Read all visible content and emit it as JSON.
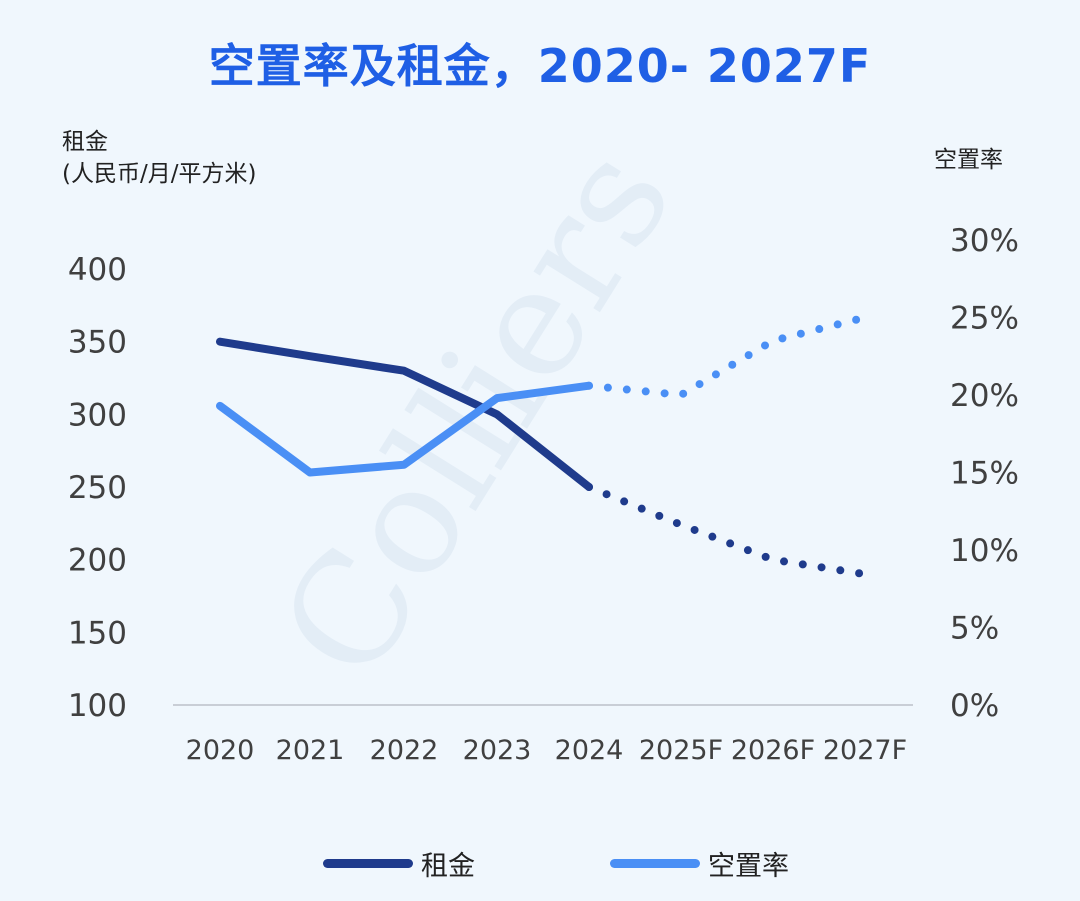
{
  "title": "空置率及租金，2020- 2027F",
  "watermark": "Colliers",
  "chart_data": {
    "type": "line",
    "title": "空置率及租金，2020- 2027F",
    "categories": [
      "2020",
      "2021",
      "2022",
      "2023",
      "2024",
      "2025F",
      "2026F",
      "2027F"
    ],
    "ylabel_left": [
      "租金",
      "(人民币/月/平方米)"
    ],
    "ylabel_right": "空置率",
    "ylim_left": [
      100,
      400
    ],
    "ylim_right": [
      0,
      30
    ],
    "yticks_left": [
      "400",
      "350",
      "300",
      "250",
      "200",
      "150",
      "100"
    ],
    "yticks_right": [
      "30%",
      "25%",
      "20%",
      "15%",
      "10%",
      "5%",
      "0%"
    ],
    "series": [
      {
        "name": "租金",
        "axis": "left",
        "color": "#1f3b8c",
        "values": [
          350,
          340,
          330,
          300,
          250,
          224,
          200,
          190
        ],
        "forecast_from_index": 4
      },
      {
        "name": "空置率",
        "axis": "right",
        "color": "#4a8ff5",
        "values": [
          19.3,
          15.0,
          15.5,
          19.8,
          20.6,
          20.0,
          23.5,
          25.0
        ],
        "forecast_from_index": 4
      }
    ],
    "legend_position": "bottom",
    "grid": false
  }
}
